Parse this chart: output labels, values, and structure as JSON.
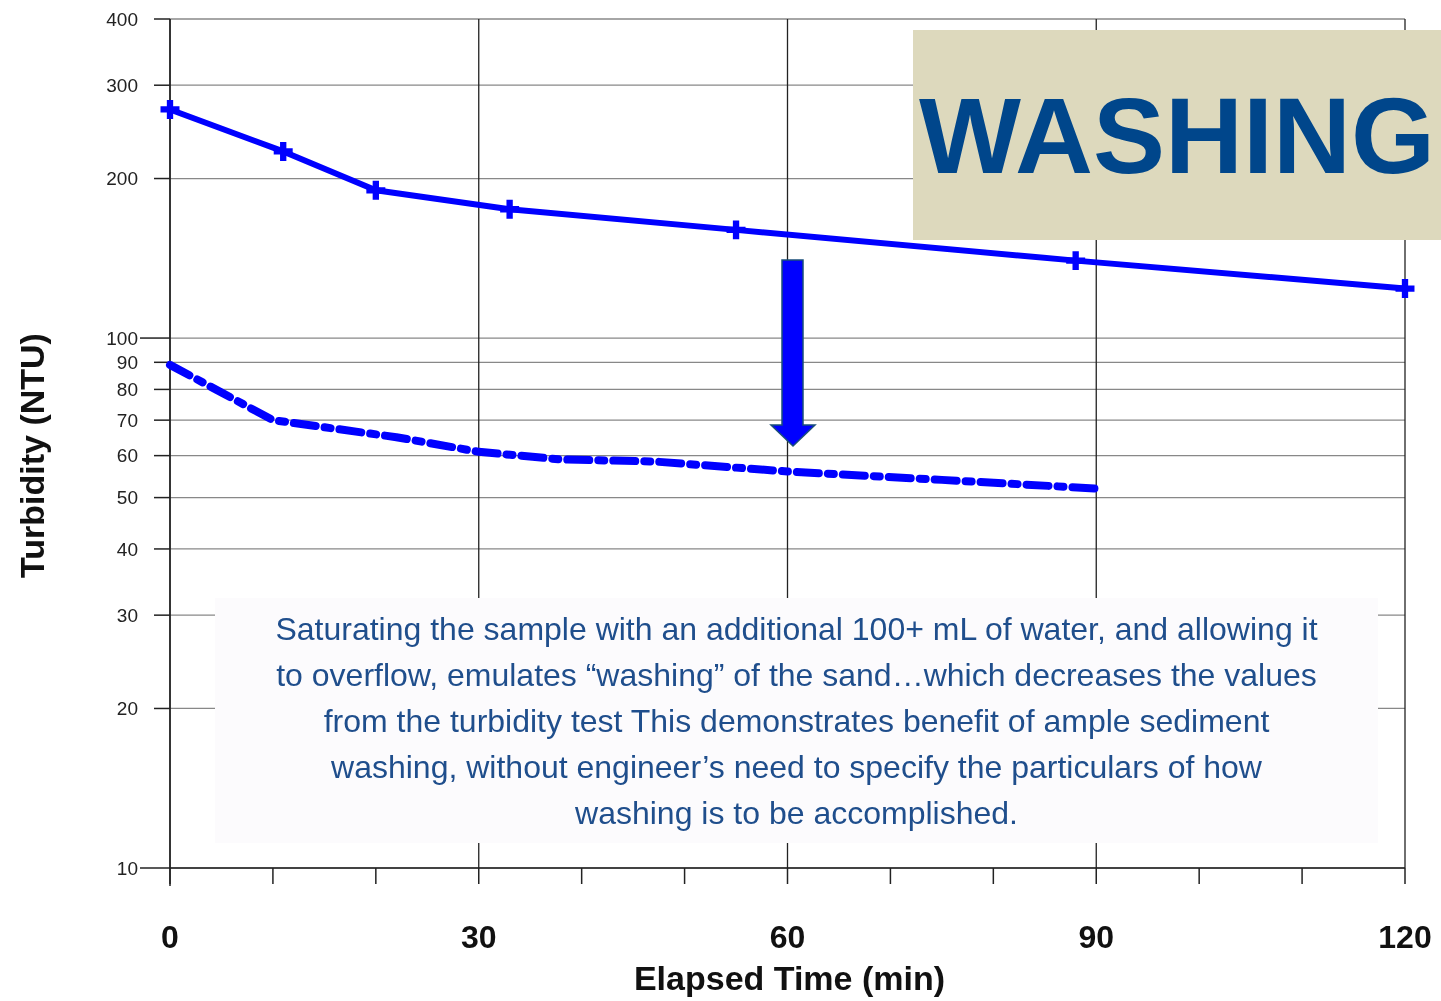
{
  "chart_data": {
    "type": "line",
    "title": "WASHING",
    "xlabel": "Elapsed Time (min)",
    "ylabel": "Turbidity (NTU)",
    "log": "y",
    "xlim": [
      0,
      120
    ],
    "ylim": [
      10,
      400
    ],
    "xticks": [
      0,
      {
        "value": 10,
        "label": null
      },
      {
        "value": 20,
        "label": null
      },
      30,
      {
        "value": 40,
        "label": null
      },
      {
        "value": 50,
        "label": null
      },
      60,
      {
        "value": 70,
        "label": null
      },
      {
        "value": 80,
        "label": null
      },
      90,
      {
        "value": 100,
        "label": null
      },
      {
        "value": 110,
        "label": null
      },
      120
    ],
    "yticks": [
      10,
      20,
      30,
      40,
      50,
      60,
      70,
      80,
      90,
      100,
      200,
      300,
      400
    ],
    "grid": true,
    "series": [
      {
        "color": "#0000ff",
        "line_style": "solid",
        "marker": "cross",
        "x": [
          0,
          11,
          20,
          33,
          55,
          88,
          120
        ],
        "values": [
          270,
          225,
          190,
          175,
          160,
          140,
          124
        ]
      },
      {
        "color": "#0000ff",
        "line_style": "dashed",
        "marker": "none",
        "x": [
          0,
          10,
          22,
          30,
          38,
          47,
          60,
          75,
          90
        ],
        "values": [
          89,
          70,
          65,
          61,
          59,
          58.5,
          56,
          54,
          52
        ]
      }
    ],
    "annotations": [
      "Saturating the sample with an additional 100+ mL of water, and allowing it to overflow, emulates “washing” of the sand…which decreases the values from the turbidity test  This demonstrates benefit of ample sediment washing, without engineer’s need to specify the particulars of how washing is to be accomplished."
    ]
  }
}
